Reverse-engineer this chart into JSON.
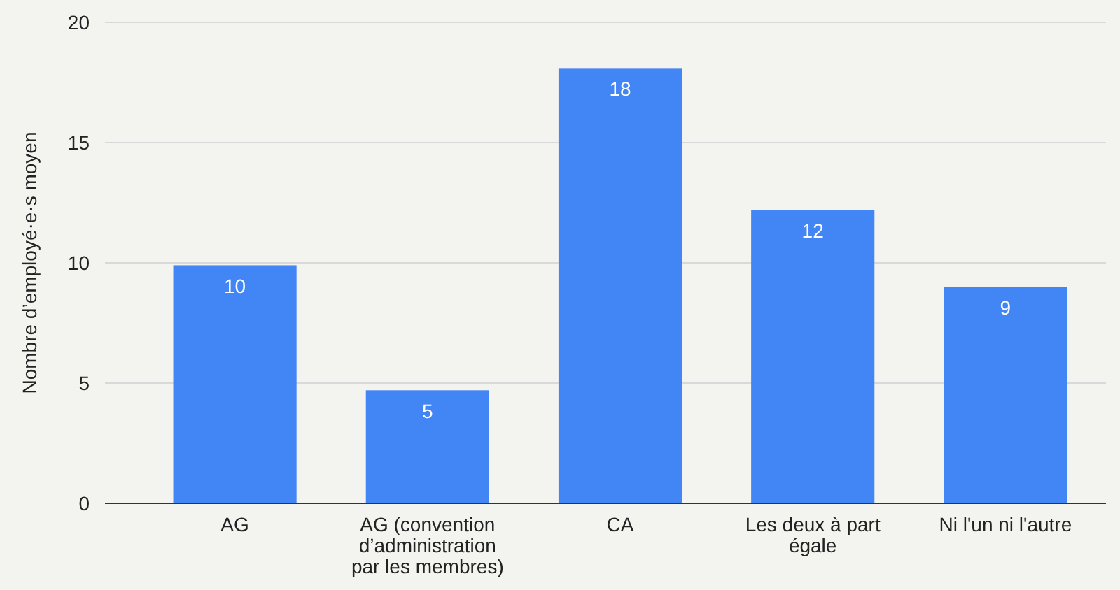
{
  "chart_data": {
    "type": "bar",
    "ylabel": "Nombre d’employé·e·s moyen",
    "categories": [
      "AG",
      "AG (convention d’administration par les membres)",
      "CA",
      "Les deux à part égale",
      "Ni l'un ni l'autre"
    ],
    "values": [
      9.9,
      4.7,
      18.1,
      12.2,
      9
    ],
    "value_labels": [
      "10",
      "5",
      "18",
      "12",
      "9"
    ],
    "color": "#4285f4",
    "ylim": [
      0,
      20
    ],
    "yticks": [
      0,
      5,
      10,
      15,
      20
    ],
    "grid": "y"
  }
}
